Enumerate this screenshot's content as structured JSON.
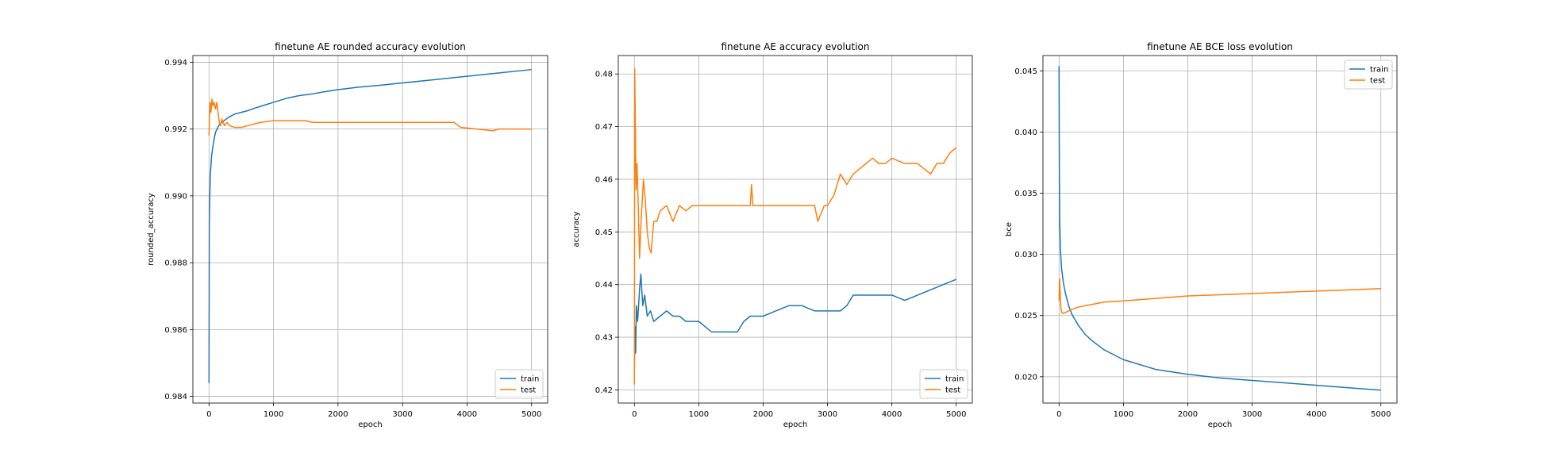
{
  "chart_data": [
    {
      "type": "line",
      "title": "finetune AE rounded accuracy evolution",
      "xlabel": "epoch",
      "ylabel": "rounded_accuracy",
      "xlim": [
        -250,
        5250
      ],
      "ylim": [
        0.9838,
        0.9942
      ],
      "xticks": [
        0,
        1000,
        2000,
        3000,
        4000,
        5000
      ],
      "xtick_labels": [
        "0",
        "1000",
        "2000",
        "3000",
        "4000",
        "5000"
      ],
      "yticks": [
        0.984,
        0.986,
        0.988,
        0.99,
        0.992,
        0.994
      ],
      "ytick_labels": [
        "0.984",
        "0.986",
        "0.988",
        "0.990",
        "0.992",
        "0.994"
      ],
      "grid": true,
      "legend": "lower right",
      "series": [
        {
          "name": "train",
          "color": "#1f77b4",
          "points": [
            [
              0,
              0.9844
            ],
            [
              5,
              0.9892
            ],
            [
              10,
              0.9898
            ],
            [
              20,
              0.9906
            ],
            [
              40,
              0.9912
            ],
            [
              70,
              0.9916
            ],
            [
              100,
              0.9919
            ],
            [
              150,
              0.9921
            ],
            [
              200,
              0.9922
            ],
            [
              300,
              0.99235
            ],
            [
              400,
              0.99245
            ],
            [
              500,
              0.9925
            ],
            [
              600,
              0.99255
            ],
            [
              700,
              0.99262
            ],
            [
              800,
              0.99268
            ],
            [
              900,
              0.99274
            ],
            [
              1000,
              0.9928
            ],
            [
              1200,
              0.99292
            ],
            [
              1400,
              0.993
            ],
            [
              1600,
              0.99305
            ],
            [
              1800,
              0.99312
            ],
            [
              2000,
              0.99318
            ],
            [
              2300,
              0.99325
            ],
            [
              2600,
              0.9933
            ],
            [
              3000,
              0.99338
            ],
            [
              3500,
              0.99348
            ],
            [
              4000,
              0.99358
            ],
            [
              4500,
              0.99368
            ],
            [
              5000,
              0.99378
            ]
          ]
        },
        {
          "name": "test",
          "color": "#ff7f0e",
          "points": [
            [
              0,
              0.9918
            ],
            [
              10,
              0.9925
            ],
            [
              20,
              0.9928
            ],
            [
              30,
              0.9925
            ],
            [
              45,
              0.9929
            ],
            [
              60,
              0.9927
            ],
            [
              80,
              0.9928
            ],
            [
              100,
              0.9926
            ],
            [
              120,
              0.9928
            ],
            [
              140,
              0.9925
            ],
            [
              160,
              0.9922
            ],
            [
              180,
              0.9921
            ],
            [
              200,
              0.9923
            ],
            [
              240,
              0.9921
            ],
            [
              280,
              0.9922
            ],
            [
              320,
              0.9921
            ],
            [
              400,
              0.99205
            ],
            [
              500,
              0.99205
            ],
            [
              600,
              0.9921
            ],
            [
              700,
              0.99215
            ],
            [
              800,
              0.9922
            ],
            [
              1000,
              0.99225
            ],
            [
              1200,
              0.99225
            ],
            [
              1500,
              0.99225
            ],
            [
              1600,
              0.9922
            ],
            [
              2000,
              0.9922
            ],
            [
              3000,
              0.9922
            ],
            [
              3800,
              0.9922
            ],
            [
              3900,
              0.99205
            ],
            [
              4400,
              0.99195
            ],
            [
              4500,
              0.992
            ],
            [
              5000,
              0.992
            ]
          ]
        }
      ]
    },
    {
      "type": "line",
      "title": "finetune AE accuracy evolution",
      "xlabel": "epoch",
      "ylabel": "accuracy",
      "xlim": [
        -250,
        5250
      ],
      "ylim": [
        0.4175,
        0.4835
      ],
      "xticks": [
        0,
        1000,
        2000,
        3000,
        4000,
        5000
      ],
      "xtick_labels": [
        "0",
        "1000",
        "2000",
        "3000",
        "4000",
        "5000"
      ],
      "yticks": [
        0.42,
        0.43,
        0.44,
        0.45,
        0.46,
        0.47,
        0.48
      ],
      "ytick_labels": [
        "0.42",
        "0.43",
        "0.44",
        "0.45",
        "0.46",
        "0.47",
        "0.48"
      ],
      "grid": true,
      "legend": "lower right",
      "series": [
        {
          "name": "train",
          "color": "#1f77b4",
          "points": [
            [
              0,
              0.424
            ],
            [
              10,
              0.432
            ],
            [
              20,
              0.427
            ],
            [
              30,
              0.436
            ],
            [
              50,
              0.433
            ],
            [
              80,
              0.439
            ],
            [
              100,
              0.442
            ],
            [
              130,
              0.436
            ],
            [
              160,
              0.438
            ],
            [
              200,
              0.434
            ],
            [
              250,
              0.435
            ],
            [
              300,
              0.433
            ],
            [
              400,
              0.434
            ],
            [
              500,
              0.435
            ],
            [
              600,
              0.434
            ],
            [
              700,
              0.434
            ],
            [
              800,
              0.433
            ],
            [
              900,
              0.433
            ],
            [
              1000,
              0.433
            ],
            [
              1100,
              0.432
            ],
            [
              1200,
              0.431
            ],
            [
              1300,
              0.431
            ],
            [
              1400,
              0.431
            ],
            [
              1500,
              0.431
            ],
            [
              1600,
              0.431
            ],
            [
              1700,
              0.433
            ],
            [
              1800,
              0.434
            ],
            [
              1900,
              0.434
            ],
            [
              2000,
              0.434
            ],
            [
              2200,
              0.435
            ],
            [
              2400,
              0.436
            ],
            [
              2600,
              0.436
            ],
            [
              2800,
              0.435
            ],
            [
              3000,
              0.435
            ],
            [
              3200,
              0.435
            ],
            [
              3300,
              0.436
            ],
            [
              3400,
              0.438
            ],
            [
              3600,
              0.438
            ],
            [
              3800,
              0.438
            ],
            [
              4000,
              0.438
            ],
            [
              4200,
              0.437
            ],
            [
              4400,
              0.438
            ],
            [
              4600,
              0.439
            ],
            [
              4800,
              0.44
            ],
            [
              5000,
              0.441
            ]
          ]
        },
        {
          "name": "test",
          "color": "#ff7f0e",
          "points": [
            [
              0,
              0.421
            ],
            [
              5,
              0.481
            ],
            [
              15,
              0.47
            ],
            [
              25,
              0.458
            ],
            [
              40,
              0.463
            ],
            [
              60,
              0.455
            ],
            [
              80,
              0.445
            ],
            [
              100,
              0.451
            ],
            [
              140,
              0.46
            ],
            [
              170,
              0.456
            ],
            [
              200,
              0.45
            ],
            [
              230,
              0.447
            ],
            [
              260,
              0.446
            ],
            [
              300,
              0.452
            ],
            [
              350,
              0.452
            ],
            [
              400,
              0.454
            ],
            [
              500,
              0.455
            ],
            [
              600,
              0.452
            ],
            [
              700,
              0.455
            ],
            [
              800,
              0.454
            ],
            [
              900,
              0.455
            ],
            [
              1000,
              0.455
            ],
            [
              1500,
              0.455
            ],
            [
              1800,
              0.455
            ],
            [
              1820,
              0.459
            ],
            [
              1840,
              0.455
            ],
            [
              2000,
              0.455
            ],
            [
              2500,
              0.455
            ],
            [
              2800,
              0.455
            ],
            [
              2850,
              0.452
            ],
            [
              2950,
              0.455
            ],
            [
              3000,
              0.455
            ],
            [
              3100,
              0.457
            ],
            [
              3200,
              0.461
            ],
            [
              3300,
              0.459
            ],
            [
              3400,
              0.461
            ],
            [
              3500,
              0.462
            ],
            [
              3600,
              0.463
            ],
            [
              3700,
              0.464
            ],
            [
              3800,
              0.463
            ],
            [
              3900,
              0.463
            ],
            [
              4000,
              0.464
            ],
            [
              4200,
              0.463
            ],
            [
              4400,
              0.463
            ],
            [
              4500,
              0.462
            ],
            [
              4600,
              0.461
            ],
            [
              4700,
              0.463
            ],
            [
              4800,
              0.463
            ],
            [
              4900,
              0.465
            ],
            [
              5000,
              0.466
            ]
          ]
        }
      ]
    },
    {
      "type": "line",
      "title": "finetune AE BCE loss evolution",
      "xlabel": "epoch",
      "ylabel": "bce",
      "xlim": [
        -250,
        5250
      ],
      "ylim": [
        0.01785,
        0.04625
      ],
      "xticks": [
        0,
        1000,
        2000,
        3000,
        4000,
        5000
      ],
      "xtick_labels": [
        "0",
        "1000",
        "2000",
        "3000",
        "4000",
        "5000"
      ],
      "yticks": [
        0.02,
        0.025,
        0.03,
        0.035,
        0.04,
        0.045
      ],
      "ytick_labels": [
        "0.020",
        "0.025",
        "0.030",
        "0.035",
        "0.040",
        "0.045"
      ],
      "grid": true,
      "legend": "upper right",
      "series": [
        {
          "name": "train",
          "color": "#1f77b4",
          "points": [
            [
              0,
              0.0454
            ],
            [
              5,
              0.037
            ],
            [
              10,
              0.033
            ],
            [
              20,
              0.0305
            ],
            [
              40,
              0.0288
            ],
            [
              70,
              0.0276
            ],
            [
              100,
              0.0268
            ],
            [
              150,
              0.0258
            ],
            [
              200,
              0.0251
            ],
            [
              300,
              0.0242
            ],
            [
              400,
              0.0235
            ],
            [
              500,
              0.023
            ],
            [
              700,
              0.0222
            ],
            [
              1000,
              0.0214
            ],
            [
              1500,
              0.0206
            ],
            [
              2000,
              0.0202
            ],
            [
              2500,
              0.0199
            ],
            [
              3000,
              0.0197
            ],
            [
              3500,
              0.0195
            ],
            [
              4000,
              0.0193
            ],
            [
              4500,
              0.0191
            ],
            [
              5000,
              0.0189
            ]
          ]
        },
        {
          "name": "test",
          "color": "#ff7f0e",
          "points": [
            [
              0,
              0.0262
            ],
            [
              10,
              0.028
            ],
            [
              20,
              0.0265
            ],
            [
              30,
              0.0255
            ],
            [
              50,
              0.0252
            ],
            [
              80,
              0.0252
            ],
            [
              120,
              0.0253
            ],
            [
              200,
              0.0255
            ],
            [
              300,
              0.0257
            ],
            [
              500,
              0.0259
            ],
            [
              700,
              0.0261
            ],
            [
              1000,
              0.0262
            ],
            [
              1500,
              0.0264
            ],
            [
              2000,
              0.0266
            ],
            [
              2500,
              0.0267
            ],
            [
              3000,
              0.0268
            ],
            [
              3500,
              0.0269
            ],
            [
              4000,
              0.027
            ],
            [
              4500,
              0.0271
            ],
            [
              5000,
              0.0272
            ]
          ]
        }
      ]
    }
  ]
}
